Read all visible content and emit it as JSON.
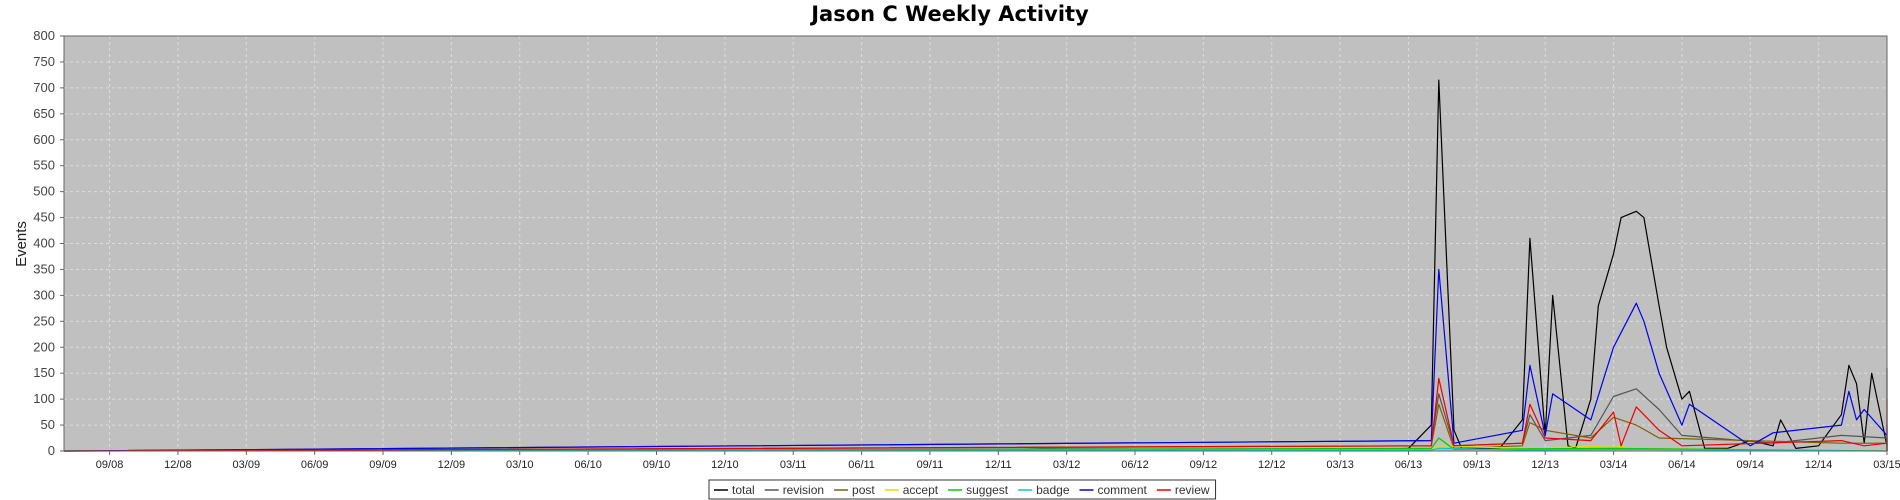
{
  "chart_data": {
    "type": "line",
    "title": "Jason C Weekly Activity",
    "xlabel": "",
    "ylabel": "Events",
    "ylim": [
      0,
      800
    ],
    "yticks": [
      0,
      50,
      100,
      150,
      200,
      250,
      300,
      350,
      400,
      450,
      500,
      550,
      600,
      650,
      700,
      750,
      800
    ],
    "x_ticks": [
      "09/08",
      "12/08",
      "03/09",
      "06/09",
      "09/09",
      "12/09",
      "03/10",
      "06/10",
      "09/10",
      "12/10",
      "03/11",
      "06/11",
      "09/11",
      "12/11",
      "03/12",
      "06/12",
      "09/12",
      "12/12",
      "03/13",
      "06/13",
      "09/13",
      "12/13",
      "03/14",
      "06/14",
      "09/14",
      "12/14",
      "03/15"
    ],
    "x_range": [
      "2008-07",
      "2015-03"
    ],
    "grid": true,
    "legend_position": "bottom",
    "plot_background": "#c0c0c0",
    "series": [
      {
        "name": "total",
        "color": "#000000",
        "points": [
          [
            "2011-10",
            2
          ],
          [
            "2012-02",
            4
          ],
          [
            "2012-11",
            3
          ],
          [
            "2013-03",
            4
          ],
          [
            "2013-05",
            3
          ],
          [
            "2013-06",
            5
          ],
          [
            "2013-07",
            50
          ],
          [
            "2013-07",
            715
          ],
          [
            "2013-08",
            40
          ],
          [
            "2013-08",
            5
          ],
          [
            "2013-10",
            5
          ],
          [
            "2013-11",
            60
          ],
          [
            "2013-11",
            410
          ],
          [
            "2013-12",
            30
          ],
          [
            "2013-12",
            300
          ],
          [
            "2014-01",
            10
          ],
          [
            "2014-01",
            5
          ],
          [
            "2014-02",
            100
          ],
          [
            "2014-02",
            280
          ],
          [
            "2014-03",
            380
          ],
          [
            "2014-03",
            450
          ],
          [
            "2014-04",
            462
          ],
          [
            "2014-04",
            450
          ],
          [
            "2014-05",
            280
          ],
          [
            "2014-05",
            200
          ],
          [
            "2014-06",
            100
          ],
          [
            "2014-06",
            115
          ],
          [
            "2014-07",
            5
          ],
          [
            "2014-08",
            5
          ],
          [
            "2014-09",
            20
          ],
          [
            "2014-10",
            10
          ],
          [
            "2014-10",
            60
          ],
          [
            "2014-11",
            5
          ],
          [
            "2014-12",
            10
          ],
          [
            "2015-01",
            70
          ],
          [
            "2015-01",
            165
          ],
          [
            "2015-01",
            130
          ],
          [
            "2015-02",
            15
          ],
          [
            "2015-02",
            150
          ],
          [
            "2015-03",
            10
          ],
          [
            "2015-04",
            5
          ],
          [
            "2015-05",
            40
          ],
          [
            "2015-05",
            100
          ],
          [
            "2015-06",
            30
          ],
          [
            "2015-06",
            35
          ],
          [
            "2015-07",
            25
          ],
          [
            "2015-07",
            160
          ]
        ]
      },
      {
        "name": "revision",
        "color": "#555555",
        "points": [
          [
            "2013-07",
            20
          ],
          [
            "2013-07",
            110
          ],
          [
            "2013-08",
            10
          ],
          [
            "2013-11",
            15
          ],
          [
            "2013-11",
            70
          ],
          [
            "2013-12",
            20
          ],
          [
            "2014-02",
            30
          ],
          [
            "2014-03",
            105
          ],
          [
            "2014-04",
            120
          ],
          [
            "2014-05",
            80
          ],
          [
            "2014-06",
            30
          ],
          [
            "2014-10",
            15
          ],
          [
            "2015-01",
            30
          ],
          [
            "2015-05",
            25
          ]
        ]
      },
      {
        "name": "post",
        "color": "#806000",
        "points": [
          [
            "2013-07",
            10
          ],
          [
            "2013-07",
            90
          ],
          [
            "2013-08",
            5
          ],
          [
            "2013-11",
            10
          ],
          [
            "2013-11",
            55
          ],
          [
            "2013-12",
            40
          ],
          [
            "2014-02",
            25
          ],
          [
            "2014-03",
            65
          ],
          [
            "2014-04",
            50
          ],
          [
            "2014-05",
            25
          ],
          [
            "2015-01",
            15
          ],
          [
            "2015-05",
            15
          ]
        ]
      },
      {
        "name": "accept",
        "color": "#dddd00",
        "points": [
          [
            "2013-07",
            3
          ],
          [
            "2013-07",
            10
          ],
          [
            "2013-11",
            5
          ],
          [
            "2014-03",
            10
          ],
          [
            "2014-04",
            5
          ]
        ]
      },
      {
        "name": "suggest",
        "color": "#00cc00",
        "points": [
          [
            "2013-07",
            5
          ],
          [
            "2013-07",
            25
          ],
          [
            "2013-08",
            3
          ],
          [
            "2013-11",
            4
          ],
          [
            "2014-03",
            5
          ]
        ]
      },
      {
        "name": "badge",
        "color": "#00cccc",
        "points": [
          [
            "2013-07",
            2
          ],
          [
            "2013-07",
            5
          ],
          [
            "2013-11",
            2
          ],
          [
            "2014-04",
            3
          ]
        ]
      },
      {
        "name": "comment",
        "color": "#0000ee",
        "points": [
          [
            "2013-07",
            20
          ],
          [
            "2013-07",
            350
          ],
          [
            "2013-08",
            15
          ],
          [
            "2013-11",
            40
          ],
          [
            "2013-11",
            165
          ],
          [
            "2013-12",
            30
          ],
          [
            "2013-12",
            110
          ],
          [
            "2014-02",
            60
          ],
          [
            "2014-03",
            200
          ],
          [
            "2014-04",
            285
          ],
          [
            "2014-04",
            250
          ],
          [
            "2014-05",
            150
          ],
          [
            "2014-06",
            50
          ],
          [
            "2014-06",
            90
          ],
          [
            "2014-09",
            10
          ],
          [
            "2014-10",
            35
          ],
          [
            "2015-01",
            50
          ],
          [
            "2015-01",
            115
          ],
          [
            "2015-01",
            60
          ],
          [
            "2015-02",
            80
          ],
          [
            "2015-05",
            30
          ],
          [
            "2015-05",
            50
          ],
          [
            "2015-06",
            15
          ],
          [
            "2015-07",
            30
          ]
        ]
      },
      {
        "name": "review",
        "color": "#ee0000",
        "points": [
          [
            "2013-07",
            10
          ],
          [
            "2013-07",
            140
          ],
          [
            "2013-08",
            10
          ],
          [
            "2013-11",
            15
          ],
          [
            "2013-11",
            90
          ],
          [
            "2013-12",
            25
          ],
          [
            "2014-02",
            20
          ],
          [
            "2014-03",
            75
          ],
          [
            "2014-03",
            10
          ],
          [
            "2014-04",
            85
          ],
          [
            "2014-05",
            40
          ],
          [
            "2014-06",
            10
          ],
          [
            "2015-01",
            20
          ],
          [
            "2015-02",
            10
          ],
          [
            "2015-05",
            15
          ],
          [
            "2015-06",
            5
          ],
          [
            "2015-07",
            100
          ]
        ]
      }
    ]
  }
}
